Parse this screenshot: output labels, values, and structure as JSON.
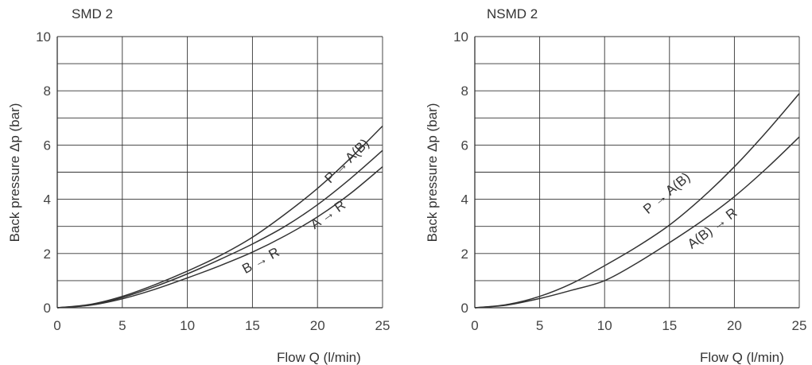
{
  "chart_data": [
    {
      "type": "line",
      "title": "SMD 2",
      "xlabel": "Flow Q (l/min)",
      "ylabel": "Back pressure  Δp (bar)",
      "xlim": [
        0,
        25
      ],
      "ylim": [
        0,
        10
      ],
      "xticks": [
        0,
        5,
        10,
        15,
        20,
        25
      ],
      "yticks": [
        0,
        2,
        4,
        6,
        8,
        10
      ],
      "grid": true,
      "series": [
        {
          "name": "P → A(B)",
          "x": [
            0,
            2.5,
            5,
            7.5,
            10,
            12.5,
            15,
            17.5,
            20,
            22.5,
            25
          ],
          "y": [
            0,
            0.12,
            0.42,
            0.85,
            1.35,
            1.92,
            2.6,
            3.45,
            4.4,
            5.5,
            6.7
          ],
          "label_at": [
            22.5,
            5.3
          ]
        },
        {
          "name": "B → R",
          "x": [
            0,
            2.5,
            5,
            7.5,
            10,
            12.5,
            15,
            17.5,
            20,
            22.5,
            25
          ],
          "y": [
            0,
            0.1,
            0.38,
            0.78,
            1.25,
            1.78,
            2.35,
            3.0,
            3.8,
            4.75,
            5.8
          ],
          "label_at": [
            15.8,
            1.6
          ]
        },
        {
          "name": "A → R",
          "x": [
            0,
            2.5,
            5,
            7.5,
            10,
            12.5,
            15,
            17.5,
            20,
            22.5,
            25
          ],
          "y": [
            0,
            0.09,
            0.33,
            0.68,
            1.1,
            1.55,
            2.05,
            2.65,
            3.35,
            4.2,
            5.2
          ],
          "label_at": [
            21.0,
            3.3
          ]
        }
      ]
    },
    {
      "type": "line",
      "title": "NSMD 2",
      "xlabel": "Flow Q (l/min)",
      "ylabel": "Back pressure Δp (bar)",
      "xlim": [
        0,
        25
      ],
      "ylim": [
        0,
        10
      ],
      "xticks": [
        0,
        5,
        10,
        15,
        20,
        25
      ],
      "yticks": [
        0,
        2,
        4,
        6,
        8,
        10
      ],
      "grid": true,
      "series": [
        {
          "name": "P → A(B)",
          "x": [
            0,
            2.5,
            5,
            7.5,
            10,
            12.5,
            15,
            17.5,
            20,
            22.5,
            25
          ],
          "y": [
            0,
            0.12,
            0.42,
            0.9,
            1.55,
            2.25,
            3.05,
            4.05,
            5.2,
            6.5,
            7.9
          ],
          "label_at": [
            15.0,
            4.1
          ]
        },
        {
          "name": "A(B) → R",
          "x": [
            0,
            2.5,
            5,
            7.5,
            10,
            12.5,
            15,
            17.5,
            20,
            22.5,
            25
          ],
          "y": [
            0,
            0.1,
            0.34,
            0.65,
            1.0,
            1.65,
            2.4,
            3.2,
            4.1,
            5.15,
            6.3
          ],
          "label_at": [
            18.5,
            2.8
          ]
        }
      ]
    }
  ]
}
